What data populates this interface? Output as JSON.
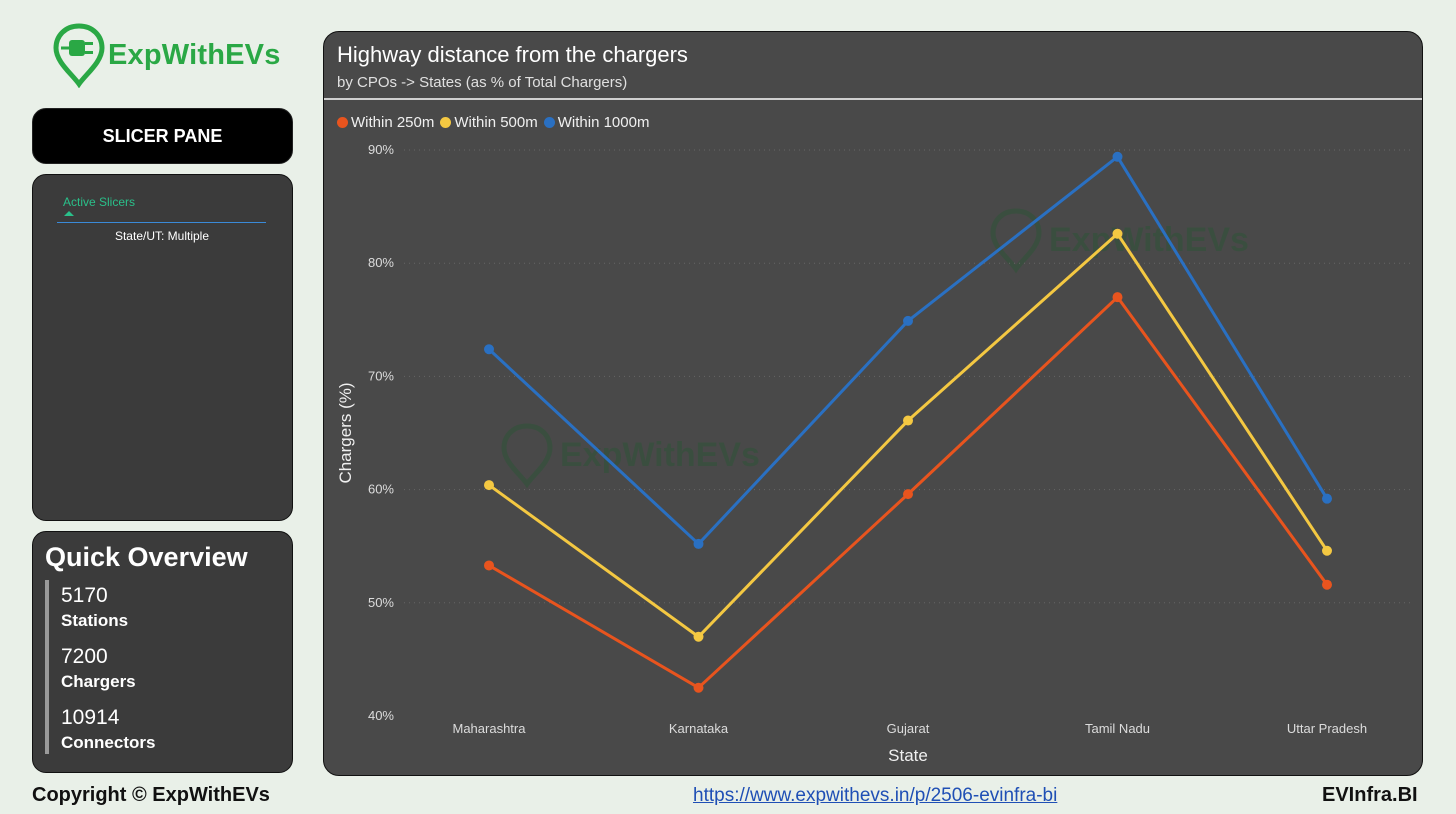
{
  "brand": {
    "name": "ExpWithEVs",
    "color": "#2aa845"
  },
  "slicer": {
    "header": "SLICER PANE",
    "active_label": "Active Slicers",
    "state_filter": "State/UT: Multiple"
  },
  "overview": {
    "title": "Quick Overview",
    "metrics": [
      {
        "value": "5170",
        "label": "Stations"
      },
      {
        "value": "7200",
        "label": "Chargers"
      },
      {
        "value": "10914",
        "label": "Connectors"
      }
    ]
  },
  "chart": {
    "title": "Highway distance from the chargers",
    "subtitle": "by CPOs -> States (as % of Total Chargers)",
    "watermark": "ExpWithEVs"
  },
  "chart_data": {
    "type": "line",
    "title": "Highway distance from the chargers",
    "subtitle": "by CPOs -> States (as % of Total Chargers)",
    "xlabel": "State",
    "ylabel": "Chargers (%)",
    "categories": [
      "Maharashtra",
      "Karnataka",
      "Gujarat",
      "Tamil Nadu",
      "Uttar Pradesh"
    ],
    "ylim": [
      40,
      90
    ],
    "yticks": [
      "40%",
      "50%",
      "60%",
      "70%",
      "80%",
      "90%"
    ],
    "ytick_values": [
      40,
      50,
      60,
      70,
      80,
      90
    ],
    "grid": true,
    "legend": "top-left",
    "series": [
      {
        "name": "Within 250m",
        "color": "#e8541e",
        "values": [
          53.3,
          42.5,
          59.6,
          77.0,
          51.6
        ]
      },
      {
        "name": "Within 500m",
        "color": "#f4c842",
        "values": [
          60.4,
          47.0,
          66.1,
          82.6,
          54.6
        ]
      },
      {
        "name": "Within 1000m",
        "color": "#2a70c2",
        "values": [
          72.4,
          55.2,
          74.9,
          89.4,
          59.2
        ]
      }
    ]
  },
  "footer": {
    "copyright": "Copyright © ExpWithEVs",
    "link": "https://www.expwithevs.in/p/2506-evinfra-bi",
    "tag": "EVInfra.BI"
  }
}
